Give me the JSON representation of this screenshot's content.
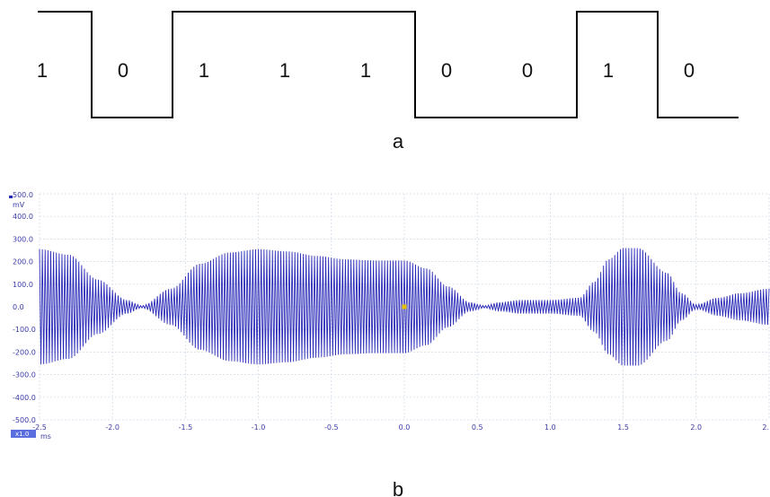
{
  "chart_data": [
    {
      "type": "line",
      "subtype": "digital-bit-waveform",
      "bits": [
        "1",
        "0",
        "1",
        "1",
        "1",
        "0",
        "0",
        "1",
        "0"
      ],
      "caption": "a"
    },
    {
      "type": "line",
      "subtype": "am-modulated-waveform",
      "caption": "b",
      "x_unit": "ms",
      "y_unit": "mV",
      "xlim": [
        -2.5,
        2.5
      ],
      "ylim": [
        -500,
        500
      ],
      "grid": true,
      "x_ticks": [
        "-2.5",
        "-2.0",
        "-1.5",
        "-1.0",
        "-0.5",
        "0.0",
        "0.5",
        "1.0",
        "1.5",
        "2.0",
        "2."
      ],
      "y_ticks": [
        "500.0",
        "400.0",
        "300.0",
        "200.0",
        "100.0",
        "0.0",
        "-100.0",
        "-200.0",
        "-300.0",
        "-400.0",
        "-500.0"
      ],
      "x_scale_badge": "x1.0",
      "envelope": {
        "x": [
          -2.5,
          -2.3,
          -2.1,
          -1.9,
          -1.8,
          -1.6,
          -1.4,
          -1.2,
          -1.0,
          -0.8,
          -0.6,
          -0.4,
          -0.2,
          0.0,
          0.15,
          0.3,
          0.45,
          0.55,
          0.65,
          0.8,
          1.0,
          1.2,
          1.3,
          1.4,
          1.5,
          1.6,
          1.8,
          1.9,
          2.0,
          2.15,
          2.3,
          2.5
        ],
        "y": [
          255,
          230,
          120,
          30,
          5,
          80,
          190,
          240,
          255,
          245,
          225,
          210,
          205,
          205,
          170,
          90,
          20,
          5,
          20,
          30,
          30,
          40,
          110,
          210,
          260,
          260,
          150,
          60,
          10,
          40,
          60,
          80
        ]
      },
      "marker": {
        "x": 0.0,
        "y": 0.0
      },
      "colors": {
        "signal": "#2a2ab8",
        "grid": "#cfd8e6",
        "marker": "#e6c000",
        "badge": "#5b6ee0"
      }
    }
  ]
}
